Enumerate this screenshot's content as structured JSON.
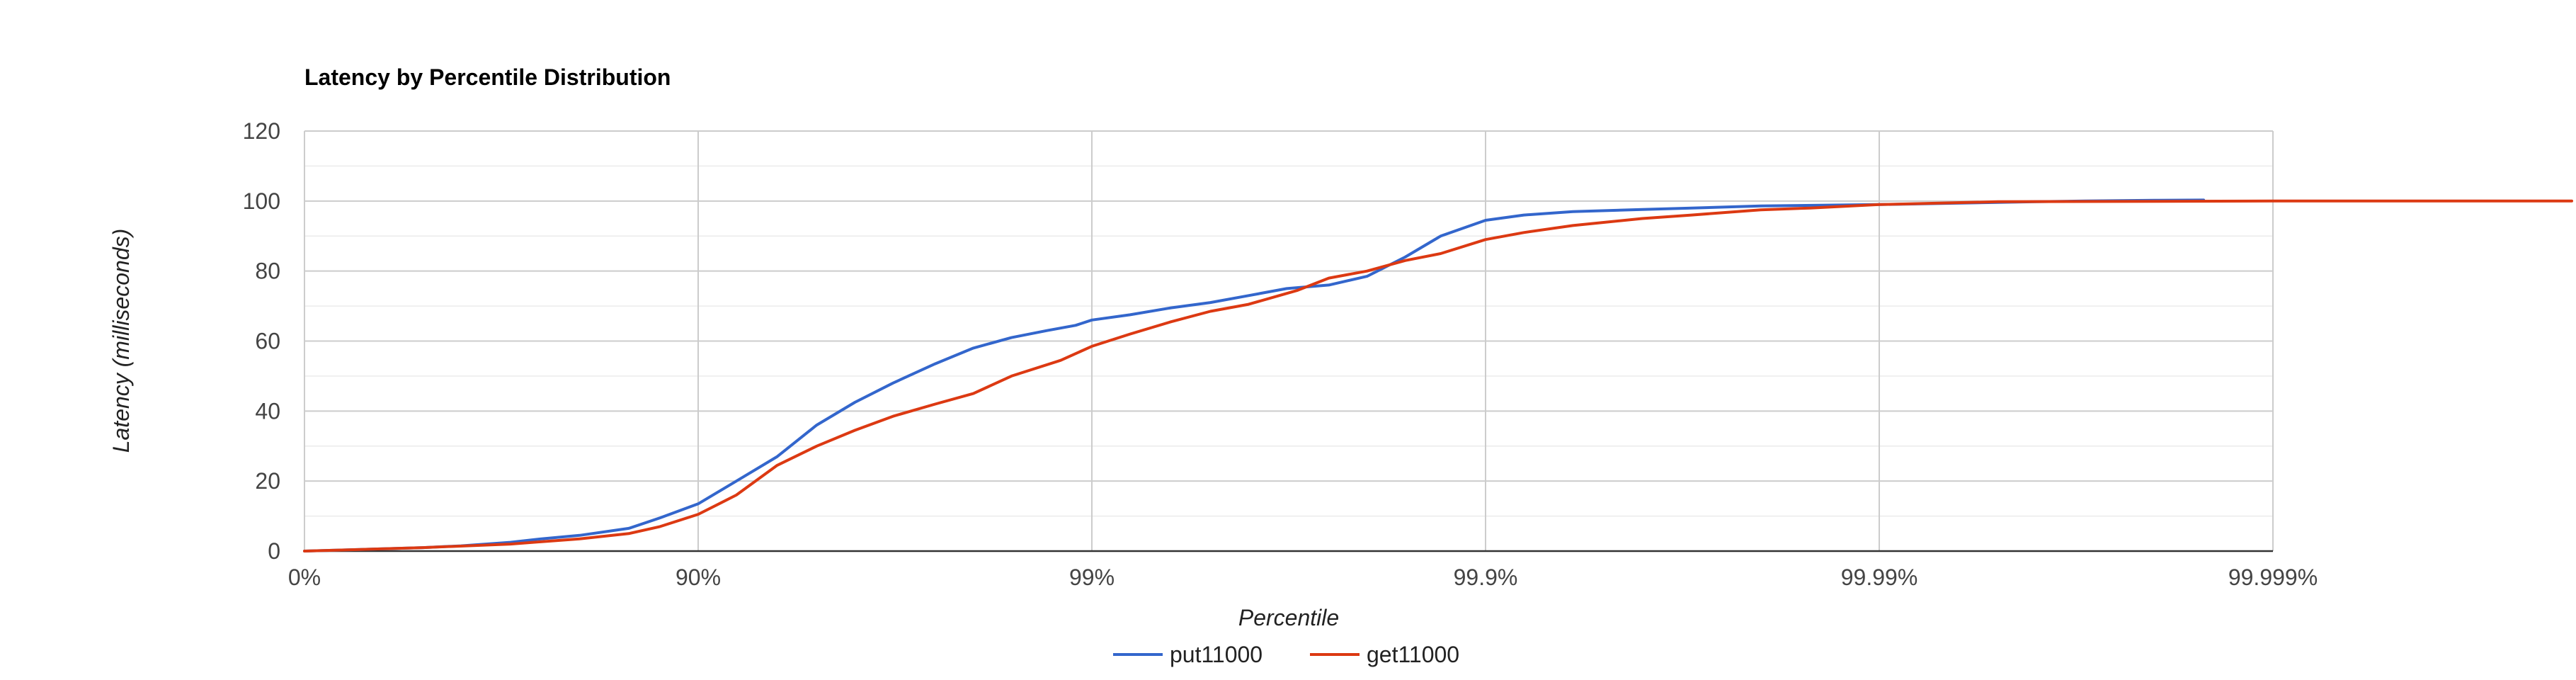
{
  "chart_data": {
    "type": "line",
    "title": "Latency by Percentile Distribution",
    "xlabel": "Percentile",
    "ylabel": "Latency (milliseconds)",
    "x_scale": "log-percentile (nines)",
    "x_ticks": [
      "0%",
      "90%",
      "99%",
      "99.9%",
      "99.99%",
      "99.999%"
    ],
    "ylim": [
      0,
      120
    ],
    "y_ticks": [
      "0",
      "20",
      "40",
      "60",
      "80",
      "100",
      "120"
    ],
    "grid": true,
    "legend_position": "bottom",
    "series": [
      {
        "name": "put11000",
        "color": "#3366cc",
        "x": [
          0,
          30,
          50,
          60,
          70,
          75,
          80,
          85,
          87.5,
          90,
          92,
          93.7,
          95,
          96,
          96.8,
          97.5,
          98,
          98.4,
          98.7,
          98.9,
          99,
          99.2,
          99.37,
          99.5,
          99.6,
          99.68,
          99.75,
          99.8,
          99.84,
          99.87,
          99.9,
          99.92,
          99.94,
          99.96,
          99.97,
          99.98,
          99.99,
          99.993,
          99.995,
          99.996,
          99.997,
          99.998,
          99.9985
        ],
        "y": [
          0,
          0.5,
          1.0,
          1.5,
          2.5,
          3.5,
          4.5,
          6.5,
          9.5,
          13.5,
          20,
          27,
          36,
          42.5,
          48,
          53.5,
          58,
          61,
          63,
          64.5,
          66,
          67.5,
          69.5,
          71,
          73,
          75,
          76,
          78.5,
          84,
          90,
          94.5,
          96,
          97,
          97.6,
          98,
          98.6,
          99,
          99.3,
          99.6,
          99.8,
          100,
          100.2,
          100.3
        ]
      },
      {
        "name": "get11000",
        "color": "#dc3912",
        "x": [
          0,
          30,
          50,
          70,
          80,
          85,
          87.5,
          90,
          92,
          93.7,
          95,
          96,
          96.8,
          97.5,
          98,
          98.4,
          98.8,
          99,
          99.2,
          99.37,
          99.5,
          99.6,
          99.7,
          99.75,
          99.8,
          99.84,
          99.87,
          99.9,
          99.92,
          99.94,
          99.96,
          99.97,
          99.98,
          99.985,
          99.99,
          99.995,
          99.999,
          99.9999
        ],
        "y": [
          0,
          0.5,
          1.0,
          2.0,
          3.5,
          5.0,
          7.0,
          10.5,
          16,
          24.5,
          30,
          34.5,
          38.5,
          42,
          45,
          50,
          54.5,
          58.5,
          62,
          65.5,
          68.5,
          70.5,
          74.5,
          78,
          80,
          83,
          85,
          89,
          91,
          93,
          95,
          96,
          97.5,
          98,
          99,
          99.8,
          100,
          100
        ]
      }
    ]
  }
}
